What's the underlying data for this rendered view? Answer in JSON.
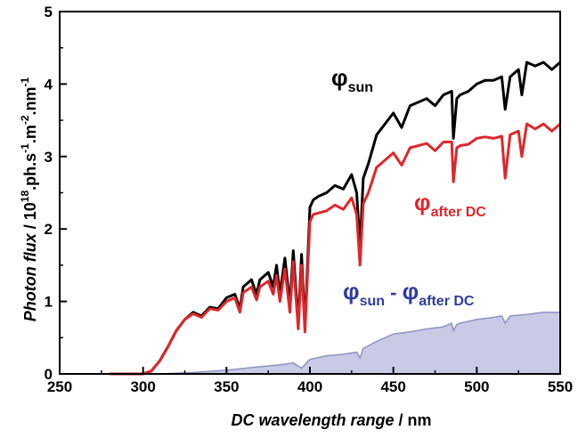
{
  "chart_data": {
    "type": "line",
    "xlabel": "DC wavelength range / nm",
    "ylabel": "Photon flux / 10^18.ph.s^-1.m^-2.nm^-1",
    "ylabel_parts": {
      "lead": "Photon flux",
      "unit_base": " / 10",
      "exp1": "18",
      "mid1": ".ph.s",
      "exp2": "-1",
      "mid2": ".m",
      "exp3": "-2",
      "mid3": ".nm",
      "exp4": "-1"
    },
    "xlabel_parts": {
      "lead": "DC wavelength range",
      "unit": " / nm"
    },
    "xlim": [
      250,
      550
    ],
    "ylim": [
      0,
      5
    ],
    "xticks": [
      250,
      300,
      350,
      400,
      450,
      500,
      550
    ],
    "yticks": [
      0,
      1,
      2,
      3,
      4,
      5
    ],
    "grid": false,
    "series": [
      {
        "name": "φsun",
        "label_base": "φ",
        "label_sub": "sun",
        "color": "#000000",
        "x": [
          280,
          300,
          305,
          310,
          315,
          320,
          325,
          330,
          335,
          340,
          345,
          350,
          355,
          358,
          360,
          365,
          368,
          370,
          375,
          378,
          380,
          382,
          385,
          388,
          390,
          393,
          395,
          397,
          400,
          402,
          405,
          410,
          415,
          420,
          425,
          428,
          430,
          432,
          435,
          440,
          445,
          450,
          455,
          460,
          465,
          470,
          475,
          480,
          485,
          486,
          488,
          490,
          495,
          500,
          505,
          510,
          515,
          517,
          520,
          525,
          527,
          530,
          535,
          540,
          545,
          550
        ],
        "y": [
          0.0,
          0.0,
          0.04,
          0.18,
          0.38,
          0.6,
          0.75,
          0.85,
          0.8,
          0.92,
          0.9,
          1.05,
          1.1,
          0.9,
          1.2,
          1.3,
          1.1,
          1.3,
          1.4,
          1.2,
          1.5,
          1.1,
          1.6,
          0.95,
          1.7,
          0.7,
          1.65,
          0.65,
          2.3,
          2.4,
          2.45,
          2.5,
          2.6,
          2.55,
          2.75,
          2.5,
          1.75,
          2.7,
          2.9,
          3.3,
          3.45,
          3.6,
          3.4,
          3.7,
          3.75,
          3.8,
          3.7,
          3.85,
          3.9,
          3.25,
          3.8,
          3.85,
          3.9,
          4.0,
          4.05,
          4.05,
          4.1,
          3.65,
          4.1,
          4.2,
          3.85,
          4.3,
          4.25,
          4.3,
          4.2,
          4.3
        ]
      },
      {
        "name": "φafter DC",
        "label_base": "φ",
        "label_sub": "after DC",
        "color": "#e0262a",
        "x": [
          280,
          300,
          305,
          310,
          315,
          320,
          325,
          330,
          335,
          340,
          345,
          350,
          355,
          358,
          360,
          365,
          368,
          370,
          375,
          378,
          380,
          382,
          385,
          388,
          390,
          393,
          395,
          397,
          400,
          402,
          405,
          410,
          415,
          420,
          425,
          428,
          430,
          432,
          435,
          440,
          445,
          450,
          455,
          460,
          465,
          470,
          475,
          480,
          485,
          486,
          488,
          490,
          495,
          500,
          505,
          510,
          515,
          517,
          520,
          525,
          527,
          530,
          535,
          540,
          545,
          550
        ],
        "y": [
          0.0,
          0.0,
          0.04,
          0.18,
          0.38,
          0.6,
          0.75,
          0.83,
          0.78,
          0.9,
          0.88,
          1.0,
          1.05,
          0.85,
          1.12,
          1.2,
          1.02,
          1.2,
          1.28,
          1.1,
          1.36,
          1.0,
          1.45,
          0.85,
          1.55,
          0.62,
          1.5,
          0.58,
          2.1,
          2.2,
          2.22,
          2.25,
          2.33,
          2.27,
          2.43,
          2.2,
          1.5,
          2.35,
          2.5,
          2.85,
          2.95,
          3.05,
          2.88,
          3.12,
          3.15,
          3.18,
          3.08,
          3.2,
          3.2,
          2.65,
          3.12,
          3.15,
          3.17,
          3.25,
          3.27,
          3.25,
          3.28,
          2.7,
          3.3,
          3.35,
          3.0,
          3.45,
          3.38,
          3.45,
          3.35,
          3.45
        ]
      },
      {
        "name": "φsun - φafter DC",
        "type": "area",
        "label_a_base": "φ",
        "label_a_sub": "sun",
        "label_op": " - ",
        "label_b_base": "φ",
        "label_b_sub": "after DC",
        "color": "#2f3ca3",
        "fill": "#c9cbe6",
        "stroke": "#8e92c2",
        "x": [
          280,
          310,
          330,
          350,
          370,
          380,
          390,
          395,
          400,
          410,
          420,
          428,
          430,
          432,
          440,
          450,
          460,
          470,
          480,
          485,
          486,
          488,
          490,
          500,
          510,
          515,
          517,
          520,
          530,
          540,
          550
        ],
        "y": [
          0.0,
          0.0,
          0.02,
          0.05,
          0.1,
          0.12,
          0.15,
          0.08,
          0.2,
          0.25,
          0.27,
          0.3,
          0.22,
          0.35,
          0.45,
          0.55,
          0.58,
          0.62,
          0.65,
          0.7,
          0.6,
          0.68,
          0.7,
          0.75,
          0.78,
          0.8,
          0.7,
          0.8,
          0.82,
          0.85,
          0.85
        ]
      }
    ],
    "legend": "inline annotations"
  }
}
